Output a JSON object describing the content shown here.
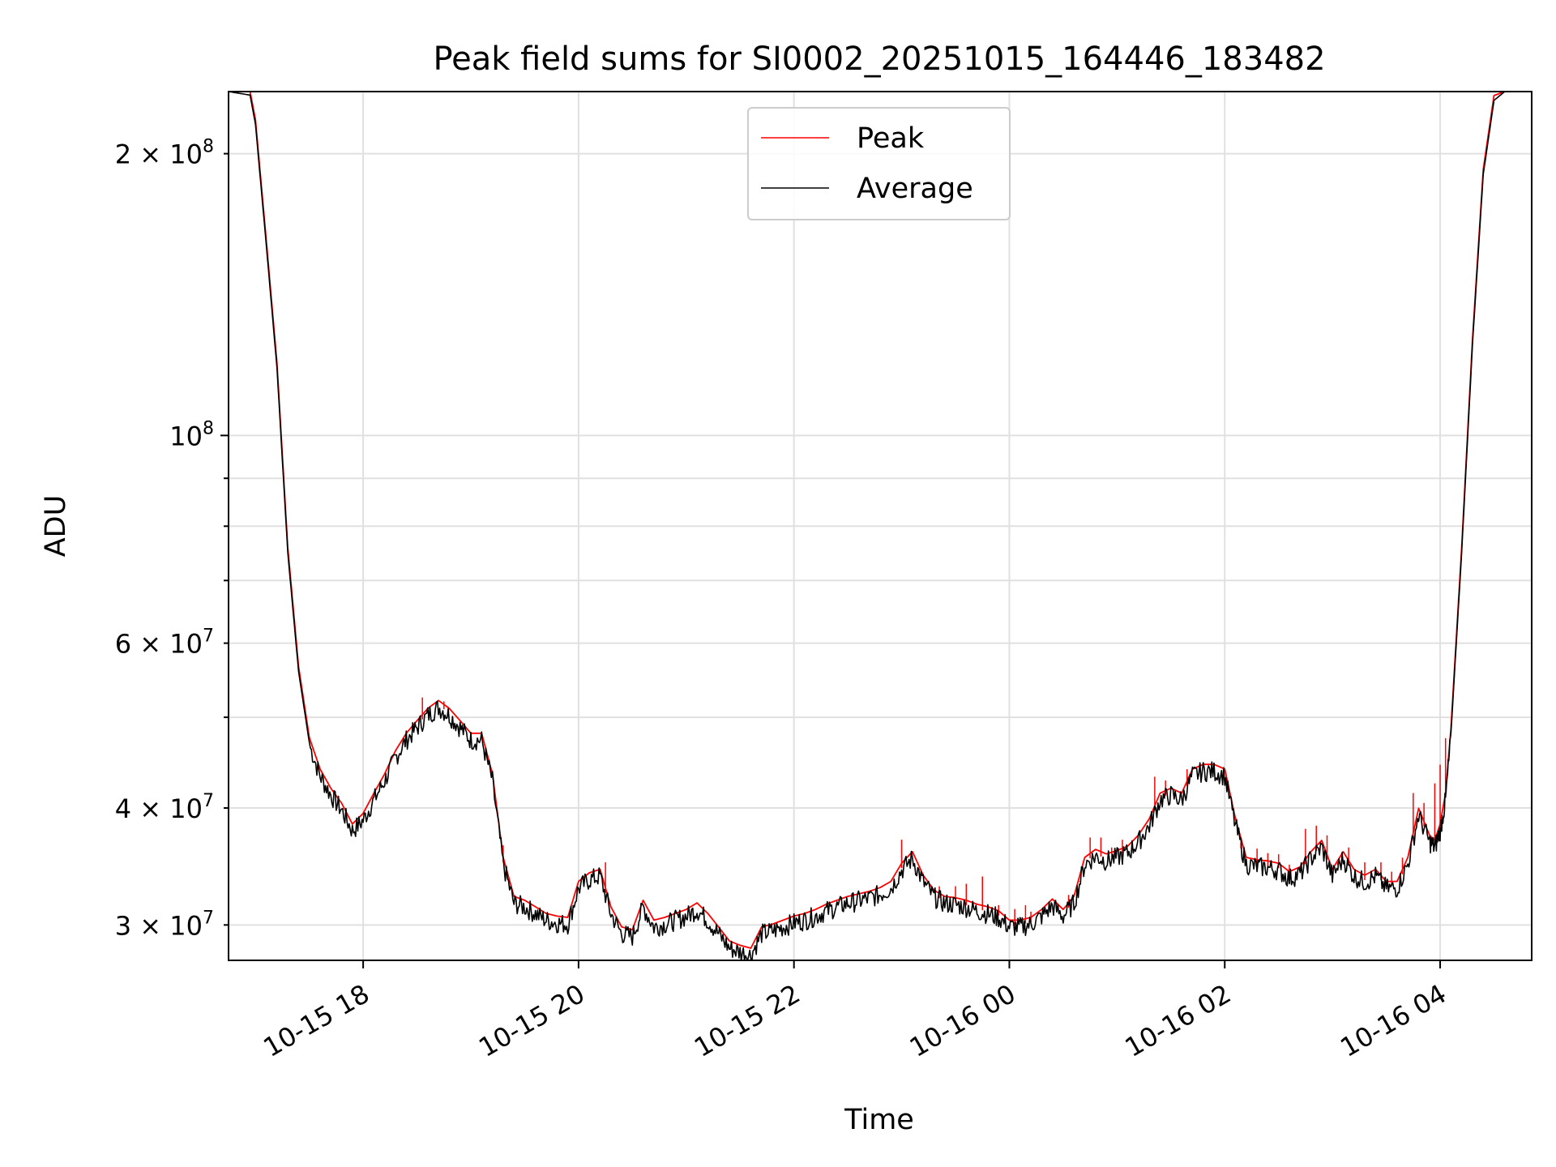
{
  "chart_data": {
    "type": "line",
    "title": "Peak field sums for SI0002_20251015_164446_183482",
    "xlabel": "Time",
    "ylabel": "ADU",
    "yscale": "log",
    "xlim": [
      16.75,
      28.85
    ],
    "ylim": [
      27500000,
      233000000
    ],
    "grid": true,
    "legend_position": "top-center",
    "x_ticks": [
      {
        "value": 18,
        "label": "10-15 18"
      },
      {
        "value": 20,
        "label": "10-15 20"
      },
      {
        "value": 22,
        "label": "10-15 22"
      },
      {
        "value": 24,
        "label": "10-16 00"
      },
      {
        "value": 26,
        "label": "10-16 02"
      },
      {
        "value": 28,
        "label": "10-16 04"
      }
    ],
    "y_major_ticks": [
      {
        "value": 100000000,
        "base": "10",
        "exp": "8",
        "mantissa": ""
      }
    ],
    "y_minor_ticks": [
      {
        "value": 30000000,
        "mantissa": "3",
        "exp": "7"
      },
      {
        "value": 40000000,
        "mantissa": "4",
        "exp": "7"
      },
      {
        "value": 60000000,
        "mantissa": "6",
        "exp": "7"
      },
      {
        "value": 200000000,
        "mantissa": "2",
        "exp": "8"
      }
    ],
    "y_minor_unlabeled": [
      50000000,
      70000000,
      80000000,
      90000000
    ],
    "x_hours_note": "x values are hours since 2025-10-15 00:00",
    "series": [
      {
        "name": "Average",
        "color": "#000000",
        "points": [
          [
            16.75,
            233000000
          ],
          [
            16.95,
            231000000
          ],
          [
            17.0,
            215000000
          ],
          [
            17.1,
            160000000
          ],
          [
            17.2,
            118000000
          ],
          [
            17.3,
            75000000
          ],
          [
            17.4,
            56000000
          ],
          [
            17.5,
            47000000
          ],
          [
            17.6,
            43500000
          ],
          [
            17.7,
            41500000
          ],
          [
            17.8,
            40000000
          ],
          [
            17.9,
            38000000
          ],
          [
            18.0,
            39000000
          ],
          [
            18.1,
            41000000
          ],
          [
            18.2,
            43000000
          ],
          [
            18.3,
            45500000
          ],
          [
            18.4,
            47500000
          ],
          [
            18.5,
            49000000
          ],
          [
            18.6,
            50500000
          ],
          [
            18.7,
            51500000
          ],
          [
            18.8,
            50500000
          ],
          [
            18.9,
            49000000
          ],
          [
            19.0,
            47500000
          ],
          [
            19.1,
            47500000
          ],
          [
            19.2,
            43000000
          ],
          [
            19.3,
            35000000
          ],
          [
            19.4,
            31800000
          ],
          [
            19.5,
            31500000
          ],
          [
            19.6,
            31000000
          ],
          [
            19.7,
            30500000
          ],
          [
            19.8,
            30300000
          ],
          [
            19.9,
            30200000
          ],
          [
            20.0,
            33000000
          ],
          [
            20.1,
            33700000
          ],
          [
            20.2,
            34000000
          ],
          [
            20.3,
            31000000
          ],
          [
            20.4,
            29500000
          ],
          [
            20.5,
            29300000
          ],
          [
            20.6,
            31500000
          ],
          [
            20.7,
            30000000
          ],
          [
            20.8,
            30200000
          ],
          [
            20.9,
            30500000
          ],
          [
            21.0,
            30800000
          ],
          [
            21.1,
            31300000
          ],
          [
            21.2,
            30500000
          ],
          [
            21.3,
            29500000
          ],
          [
            21.4,
            28500000
          ],
          [
            21.5,
            28200000
          ],
          [
            21.6,
            28000000
          ],
          [
            21.7,
            29500000
          ],
          [
            21.8,
            29700000
          ],
          [
            21.9,
            30000000
          ],
          [
            22.0,
            30300000
          ],
          [
            22.1,
            30500000
          ],
          [
            22.2,
            30800000
          ],
          [
            22.3,
            31200000
          ],
          [
            22.4,
            31500000
          ],
          [
            22.5,
            31800000
          ],
          [
            22.6,
            32000000
          ],
          [
            22.7,
            32200000
          ],
          [
            22.8,
            32500000
          ],
          [
            22.9,
            33000000
          ],
          [
            23.0,
            34500000
          ],
          [
            23.1,
            35500000
          ],
          [
            23.2,
            33500000
          ],
          [
            23.3,
            32300000
          ],
          [
            23.4,
            31800000
          ],
          [
            23.5,
            31700000
          ],
          [
            23.6,
            31500000
          ],
          [
            23.7,
            31200000
          ],
          [
            23.8,
            31000000
          ],
          [
            23.9,
            30700000
          ],
          [
            24.0,
            30000000
          ],
          [
            24.1,
            30000000
          ],
          [
            24.2,
            30200000
          ],
          [
            24.3,
            30800000
          ],
          [
            24.4,
            31600000
          ],
          [
            24.5,
            30800000
          ],
          [
            24.6,
            31800000
          ],
          [
            24.7,
            35000000
          ],
          [
            24.8,
            35700000
          ],
          [
            24.9,
            35300000
          ],
          [
            25.0,
            35600000
          ],
          [
            25.1,
            36000000
          ],
          [
            25.2,
            37000000
          ],
          [
            25.3,
            38500000
          ],
          [
            25.4,
            41000000
          ],
          [
            25.5,
            41500000
          ],
          [
            25.6,
            41000000
          ],
          [
            25.7,
            43500000
          ],
          [
            25.8,
            44000000
          ],
          [
            25.9,
            44000000
          ],
          [
            26.0,
            43500000
          ],
          [
            26.1,
            38500000
          ],
          [
            26.2,
            35000000
          ],
          [
            26.3,
            34800000
          ],
          [
            26.4,
            34700000
          ],
          [
            26.5,
            34500000
          ],
          [
            26.6,
            33800000
          ],
          [
            26.7,
            34200000
          ],
          [
            26.8,
            35500000
          ],
          [
            26.9,
            36500000
          ],
          [
            27.0,
            34000000
          ],
          [
            27.1,
            35500000
          ],
          [
            27.2,
            34000000
          ],
          [
            27.3,
            33500000
          ],
          [
            27.4,
            34000000
          ],
          [
            27.5,
            33000000
          ],
          [
            27.6,
            33000000
          ],
          [
            27.7,
            35000000
          ],
          [
            27.8,
            39500000
          ],
          [
            27.9,
            37000000
          ],
          [
            27.95,
            36500000
          ],
          [
            28.0,
            38000000
          ],
          [
            28.05,
            41000000
          ],
          [
            28.1,
            48000000
          ],
          [
            28.2,
            75000000
          ],
          [
            28.3,
            125000000
          ],
          [
            28.4,
            190000000
          ],
          [
            28.5,
            228000000
          ],
          [
            28.6,
            233000000
          ],
          [
            28.85,
            233000000
          ]
        ]
      },
      {
        "name": "Peak",
        "color": "#ff0000",
        "spikes": [
          [
            18.55,
            52500000
          ],
          [
            18.75,
            52000000
          ],
          [
            19.3,
            36500000
          ],
          [
            20.25,
            35000000
          ],
          [
            23.0,
            37000000
          ],
          [
            23.2,
            33500000
          ],
          [
            23.35,
            33000000
          ],
          [
            23.5,
            33000000
          ],
          [
            23.6,
            33200000
          ],
          [
            23.75,
            33800000
          ],
          [
            23.9,
            31500000
          ],
          [
            24.05,
            31200000
          ],
          [
            24.15,
            31500000
          ],
          [
            24.2,
            31000000
          ],
          [
            24.55,
            32300000
          ],
          [
            24.65,
            33400000
          ],
          [
            24.75,
            37200000
          ],
          [
            24.85,
            37200000
          ],
          [
            24.95,
            36300000
          ],
          [
            25.05,
            37000000
          ],
          [
            25.35,
            43200000
          ],
          [
            25.45,
            42800000
          ],
          [
            25.55,
            41200000
          ],
          [
            25.65,
            44000000
          ],
          [
            26.0,
            43500000
          ],
          [
            26.15,
            36200000
          ],
          [
            26.3,
            36200000
          ],
          [
            26.4,
            35800000
          ],
          [
            26.5,
            35700000
          ],
          [
            26.6,
            34800000
          ],
          [
            26.75,
            38000000
          ],
          [
            26.85,
            38300000
          ],
          [
            26.95,
            37400000
          ],
          [
            27.05,
            35000000
          ],
          [
            27.15,
            36300000
          ],
          [
            27.3,
            35000000
          ],
          [
            27.45,
            35000000
          ],
          [
            27.55,
            34200000
          ],
          [
            27.65,
            35400000
          ],
          [
            27.75,
            41500000
          ],
          [
            27.85,
            40500000
          ],
          [
            27.95,
            42500000
          ],
          [
            28.0,
            44500000
          ],
          [
            28.05,
            47500000
          ]
        ]
      }
    ]
  }
}
